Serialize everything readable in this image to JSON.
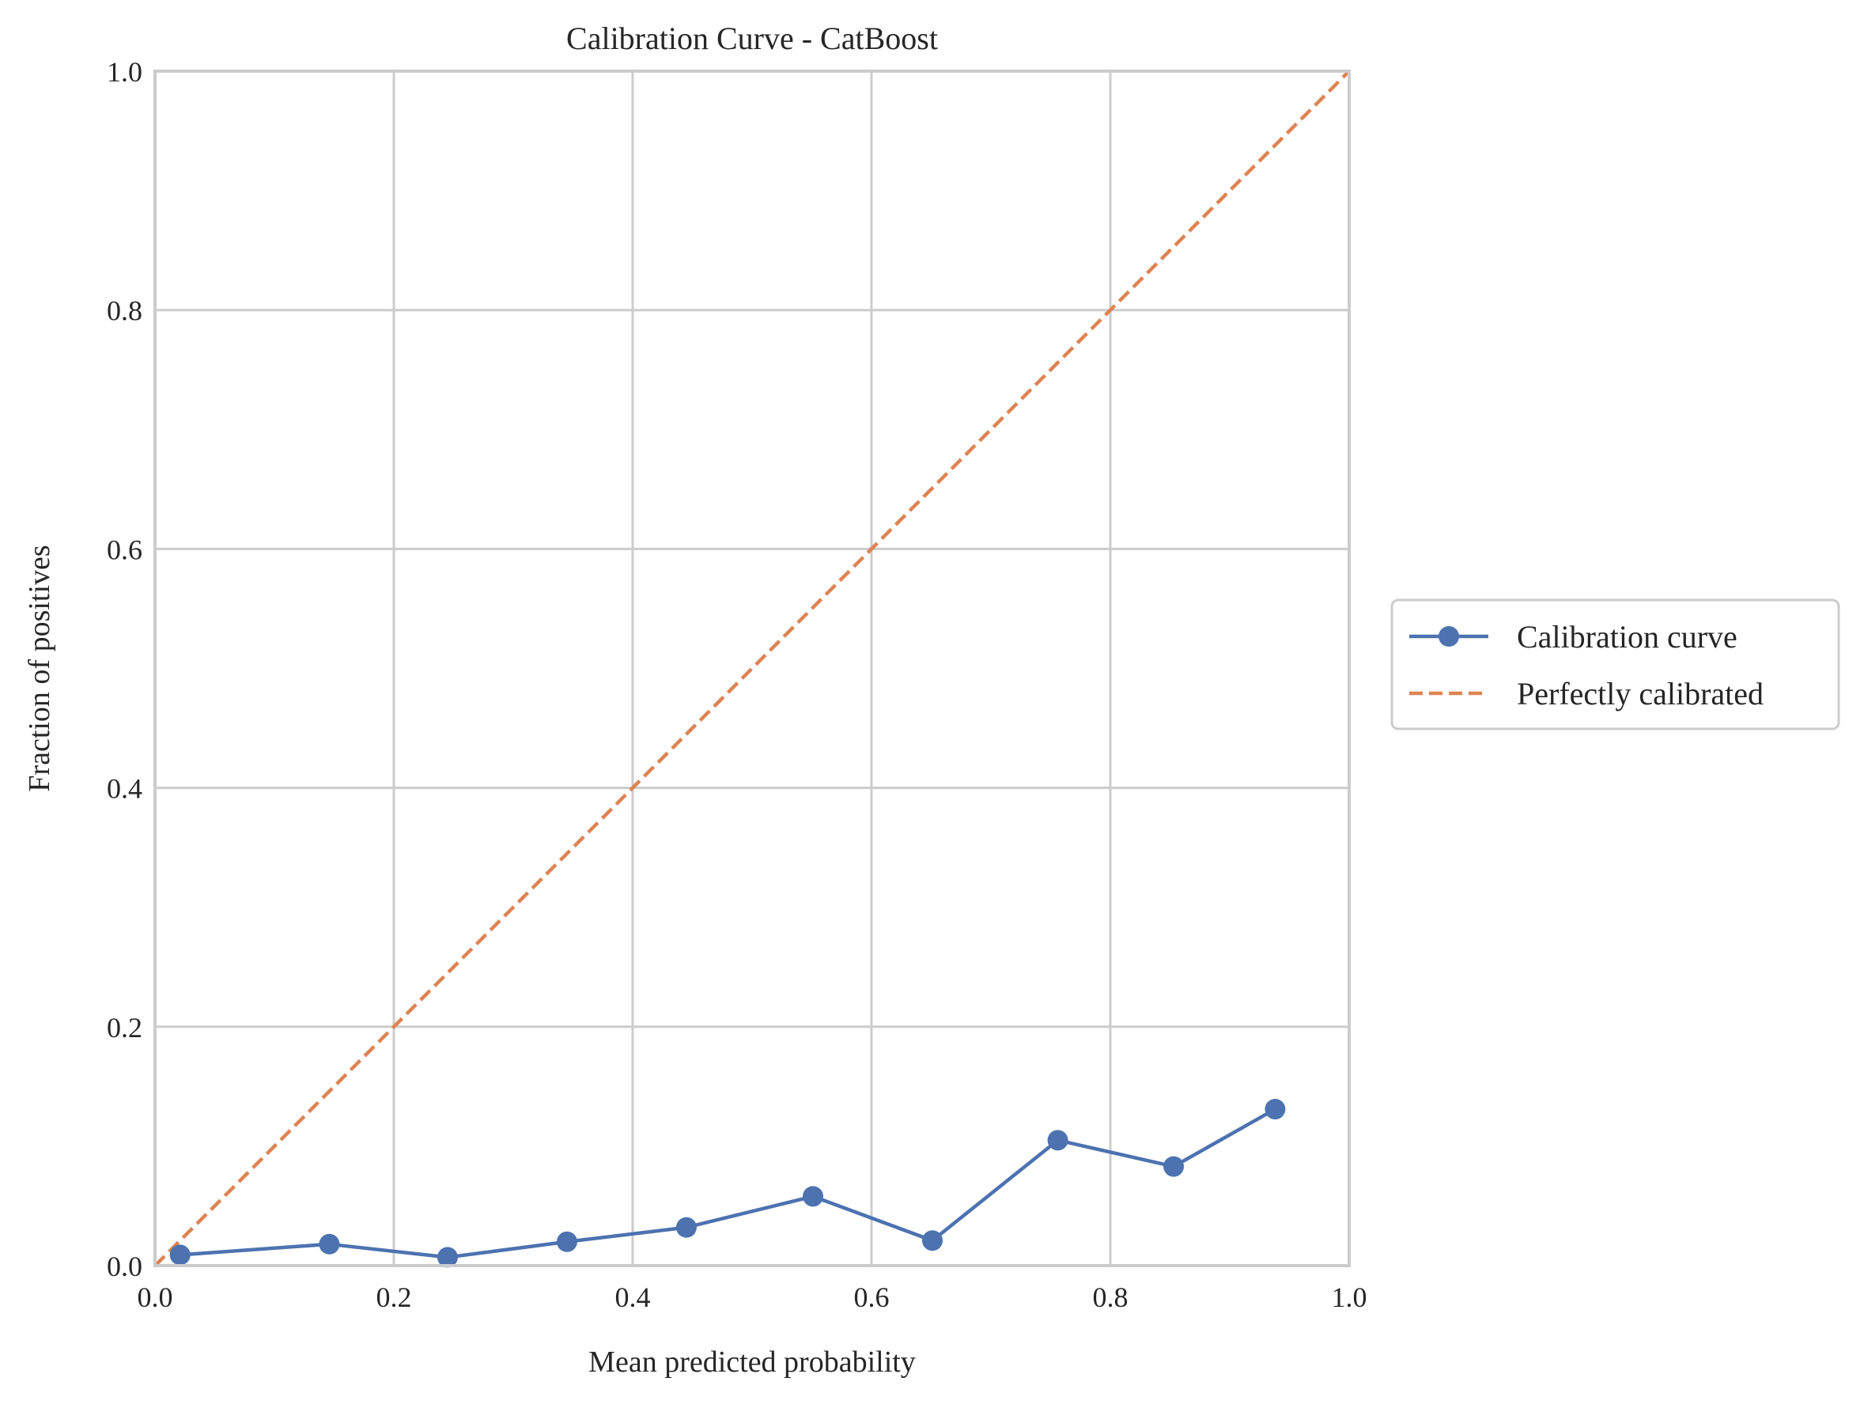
{
  "chart_data": {
    "type": "line",
    "title": "Calibration Curve - CatBoost",
    "xlabel": "Mean predicted probability",
    "ylabel": "Fraction of positives",
    "xlim": [
      0.0,
      1.0
    ],
    "ylim": [
      0.0,
      1.0
    ],
    "xticks": [
      "0.0",
      "0.2",
      "0.4",
      "0.6",
      "0.8",
      "1.0"
    ],
    "yticks": [
      "0.0",
      "0.2",
      "0.4",
      "0.6",
      "0.8",
      "1.0"
    ],
    "grid": true,
    "legend_position": "right-center",
    "series": [
      {
        "name": "Calibration curve",
        "style": "solid-with-markers",
        "color": "#4c72b0",
        "x": [
          0.021,
          0.146,
          0.245,
          0.345,
          0.445,
          0.551,
          0.651,
          0.756,
          0.853,
          0.938
        ],
        "y": [
          0.009,
          0.018,
          0.007,
          0.02,
          0.032,
          0.058,
          0.021,
          0.105,
          0.083,
          0.131
        ]
      },
      {
        "name": "Perfectly calibrated",
        "style": "dashed",
        "color": "#dd8452",
        "x": [
          0.0,
          1.0
        ],
        "y": [
          0.0,
          1.0
        ]
      }
    ]
  }
}
